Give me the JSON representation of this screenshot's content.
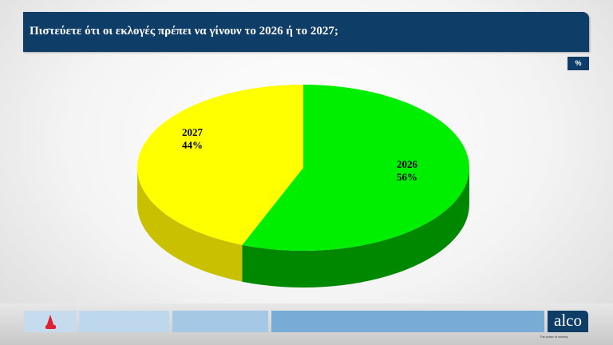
{
  "header": {
    "title": "Πιστεύετε ότι οι εκλογές πρέπει να γίνουν το 2026 ή το 2027;",
    "unit": "%"
  },
  "chart_data": {
    "type": "pie",
    "style": "3d",
    "title": "Πιστεύετε ότι οι εκλογές πρέπει να γίνουν το 2026 ή το 2027;",
    "slices": [
      {
        "label": "2026",
        "value": 56,
        "value_label": "56%",
        "color": "#00ee00",
        "side_color": "#008800"
      },
      {
        "label": "2027",
        "value": 44,
        "value_label": "44%",
        "color": "#ffff00",
        "side_color": "#c8c000"
      }
    ]
  },
  "footer": {
    "logo": "alco",
    "tagline": "The pulse of society",
    "colors": [
      "#bfd7ec",
      "#a4c8e6",
      "#78acd6"
    ]
  }
}
